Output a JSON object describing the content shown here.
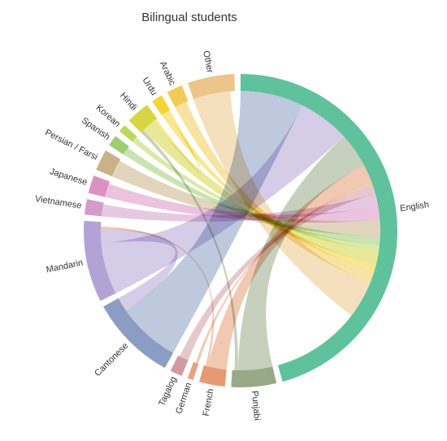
{
  "chart_data": {
    "type": "chord",
    "title": "Bilingual students",
    "languages": [
      {
        "name": "English",
        "color": "#5fc29c",
        "value": 69
      },
      {
        "name": "Punjabi",
        "color": "#98a987",
        "value": 7
      },
      {
        "name": "French",
        "color": "#e59a73",
        "value": 4
      },
      {
        "name": "German",
        "color": "#e8a07e",
        "value": 0.9
      },
      {
        "name": "Tagalog",
        "color": "#cf9aa0",
        "value": 1.9
      },
      {
        "name": "Cantonese",
        "color": "#8b9dc3",
        "value": 13.5
      },
      {
        "name": "Mandarin",
        "color": "#b3a3d5",
        "value": 12.7
      },
      {
        "name": "Vietnamese",
        "color": "#d49ac8",
        "value": 2.4
      },
      {
        "name": "Japanese",
        "color": "#db92c3",
        "value": 2.8
      },
      {
        "name": "Persian / Farsi",
        "color": "#c9b287",
        "value": 3.3
      },
      {
        "name": "Spanish",
        "color": "#9dce70",
        "value": 1.7
      },
      {
        "name": "Korean",
        "color": "#bbd95c",
        "value": 1.2
      },
      {
        "name": "Hindi",
        "color": "#d6d644",
        "value": 3.7
      },
      {
        "name": "Urdu",
        "color": "#f5d535",
        "value": 1.7
      },
      {
        "name": "Arabic",
        "color": "#f0cc56",
        "value": 2.5
      },
      {
        "name": "Other",
        "color": "#ecc689",
        "value": 7.3
      }
    ],
    "flows": [
      {
        "source": "Cantonese",
        "target": "English",
        "value": 11
      },
      {
        "source": "Mandarin",
        "target": "English",
        "value": 9
      },
      {
        "source": "Mandarin",
        "target": "Cantonese",
        "value": 2.5
      },
      {
        "source": "Punjabi",
        "target": "English",
        "value": 6
      },
      {
        "source": "Punjabi",
        "target": "Hindi",
        "value": 0.6
      },
      {
        "source": "French",
        "target": "English",
        "value": 3.3
      },
      {
        "source": "French",
        "target": "Mandarin",
        "value": 0.4
      },
      {
        "source": "German",
        "target": "English",
        "value": 0.5
      },
      {
        "source": "Tagalog",
        "target": "English",
        "value": 1.6
      },
      {
        "source": "Vietnamese",
        "target": "English",
        "value": 2.1
      },
      {
        "source": "Japanese",
        "target": "English",
        "value": 2.4
      },
      {
        "source": "Persian / Farsi",
        "target": "English",
        "value": 3
      },
      {
        "source": "Spanish",
        "target": "English",
        "value": 1.4
      },
      {
        "source": "Korean",
        "target": "English",
        "value": 1
      },
      {
        "source": "Hindi",
        "target": "English",
        "value": 2.4
      },
      {
        "source": "Urdu",
        "target": "English",
        "value": 1.1
      },
      {
        "source": "Urdu",
        "target": "Hindi",
        "value": 0.5
      },
      {
        "source": "Arabic",
        "target": "English",
        "value": 2.2
      },
      {
        "source": "Other",
        "target": "English",
        "value": 6.5
      }
    ]
  }
}
